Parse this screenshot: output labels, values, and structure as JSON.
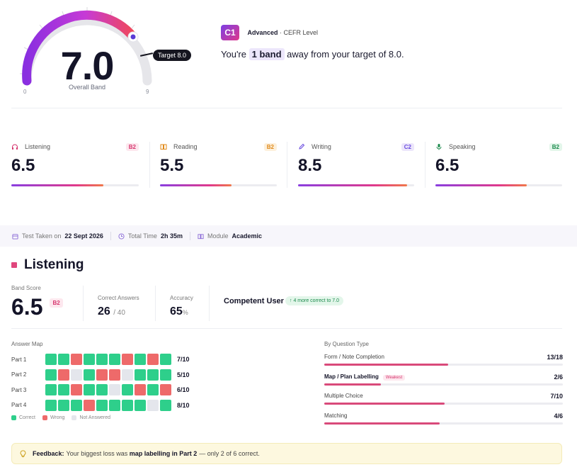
{
  "overall": {
    "score": "7.0",
    "label": "Overall Band",
    "min": "0",
    "max": "9",
    "target_label": "Target 8.0",
    "fill_fraction": 0.78
  },
  "cefr": {
    "code": "C1",
    "level": "Advanced",
    "suffix": "· CEFR Level"
  },
  "hero_message": {
    "pre": "You're",
    "highlight": "1 band",
    "post": "away from your target of 8.0."
  },
  "skills": [
    {
      "name": "Listening",
      "level": "B2",
      "score": "6.5",
      "fill": 0.72,
      "icon": "headphones-icon",
      "color": "#d6366e",
      "bg": "#fde7ee"
    },
    {
      "name": "Reading",
      "level": "B2",
      "score": "5.5",
      "fill": 0.61,
      "icon": "book-icon",
      "color": "#e08a1a",
      "bg": "#fdf0dc"
    },
    {
      "name": "Writing",
      "level": "C2",
      "score": "8.5",
      "fill": 0.94,
      "icon": "pen-icon",
      "color": "#6a4ce0",
      "bg": "#ece6fb"
    },
    {
      "name": "Speaking",
      "level": "B2",
      "score": "6.5",
      "fill": 0.72,
      "icon": "mic-icon",
      "color": "#1b8a4c",
      "bg": "#e3f6ea"
    }
  ],
  "meta": {
    "test_label": "Test Taken on",
    "test_value": "22 Sept 2026",
    "time_label": "Total Time",
    "time_value": "2h 35m",
    "module_label": "Module",
    "module_value": "Academic"
  },
  "listening": {
    "title": "Listening",
    "band_label": "Band Score",
    "band_value": "6.5",
    "band_level": "B2",
    "correct_label": "Correct Answers",
    "correct_value": "26",
    "correct_total": "/ 40",
    "accuracy_label": "Accuracy",
    "accuracy_value": "65",
    "accuracy_unit": "%",
    "competency": "Competent User",
    "improve_pill": "↑  4 more correct to 7.0"
  },
  "answer_map": {
    "title": "Answer Map",
    "parts": [
      {
        "label": "Part 1",
        "score": "7/10",
        "cells": [
          "c",
          "c",
          "w",
          "c",
          "c",
          "c",
          "w",
          "c",
          "w",
          "c"
        ]
      },
      {
        "label": "Part 2",
        "score": "5/10",
        "cells": [
          "c",
          "w",
          "n",
          "c",
          "w",
          "w",
          "n",
          "c",
          "c",
          "c"
        ]
      },
      {
        "label": "Part 3",
        "score": "6/10",
        "cells": [
          "c",
          "c",
          "w",
          "c",
          "c",
          "n",
          "c",
          "w",
          "c",
          "w"
        ]
      },
      {
        "label": "Part 4",
        "score": "8/10",
        "cells": [
          "c",
          "c",
          "c",
          "w",
          "c",
          "c",
          "c",
          "c",
          "n",
          "c"
        ]
      }
    ],
    "legend": {
      "correct": "Correct",
      "wrong": "Wrong",
      "na": "Not Answered"
    }
  },
  "by_type": {
    "title": "By Question Type",
    "items": [
      {
        "name": "Form / Note Completion",
        "count": "13/18",
        "fill": 0.72,
        "weak": ""
      },
      {
        "name": "Map / Plan Labelling",
        "count": "2/6",
        "fill": 0.33,
        "weak": "Weakest"
      },
      {
        "name": "Multiple Choice",
        "count": "7/10",
        "fill": 0.7,
        "weak": ""
      },
      {
        "name": "Matching",
        "count": "4/6",
        "fill": 0.67,
        "weak": ""
      }
    ]
  },
  "feedback": {
    "label": "Feedback:",
    "pre": "Your biggest loss was",
    "bold": "map labelling in Part 2",
    "post": "— only 2 of 6 correct."
  }
}
